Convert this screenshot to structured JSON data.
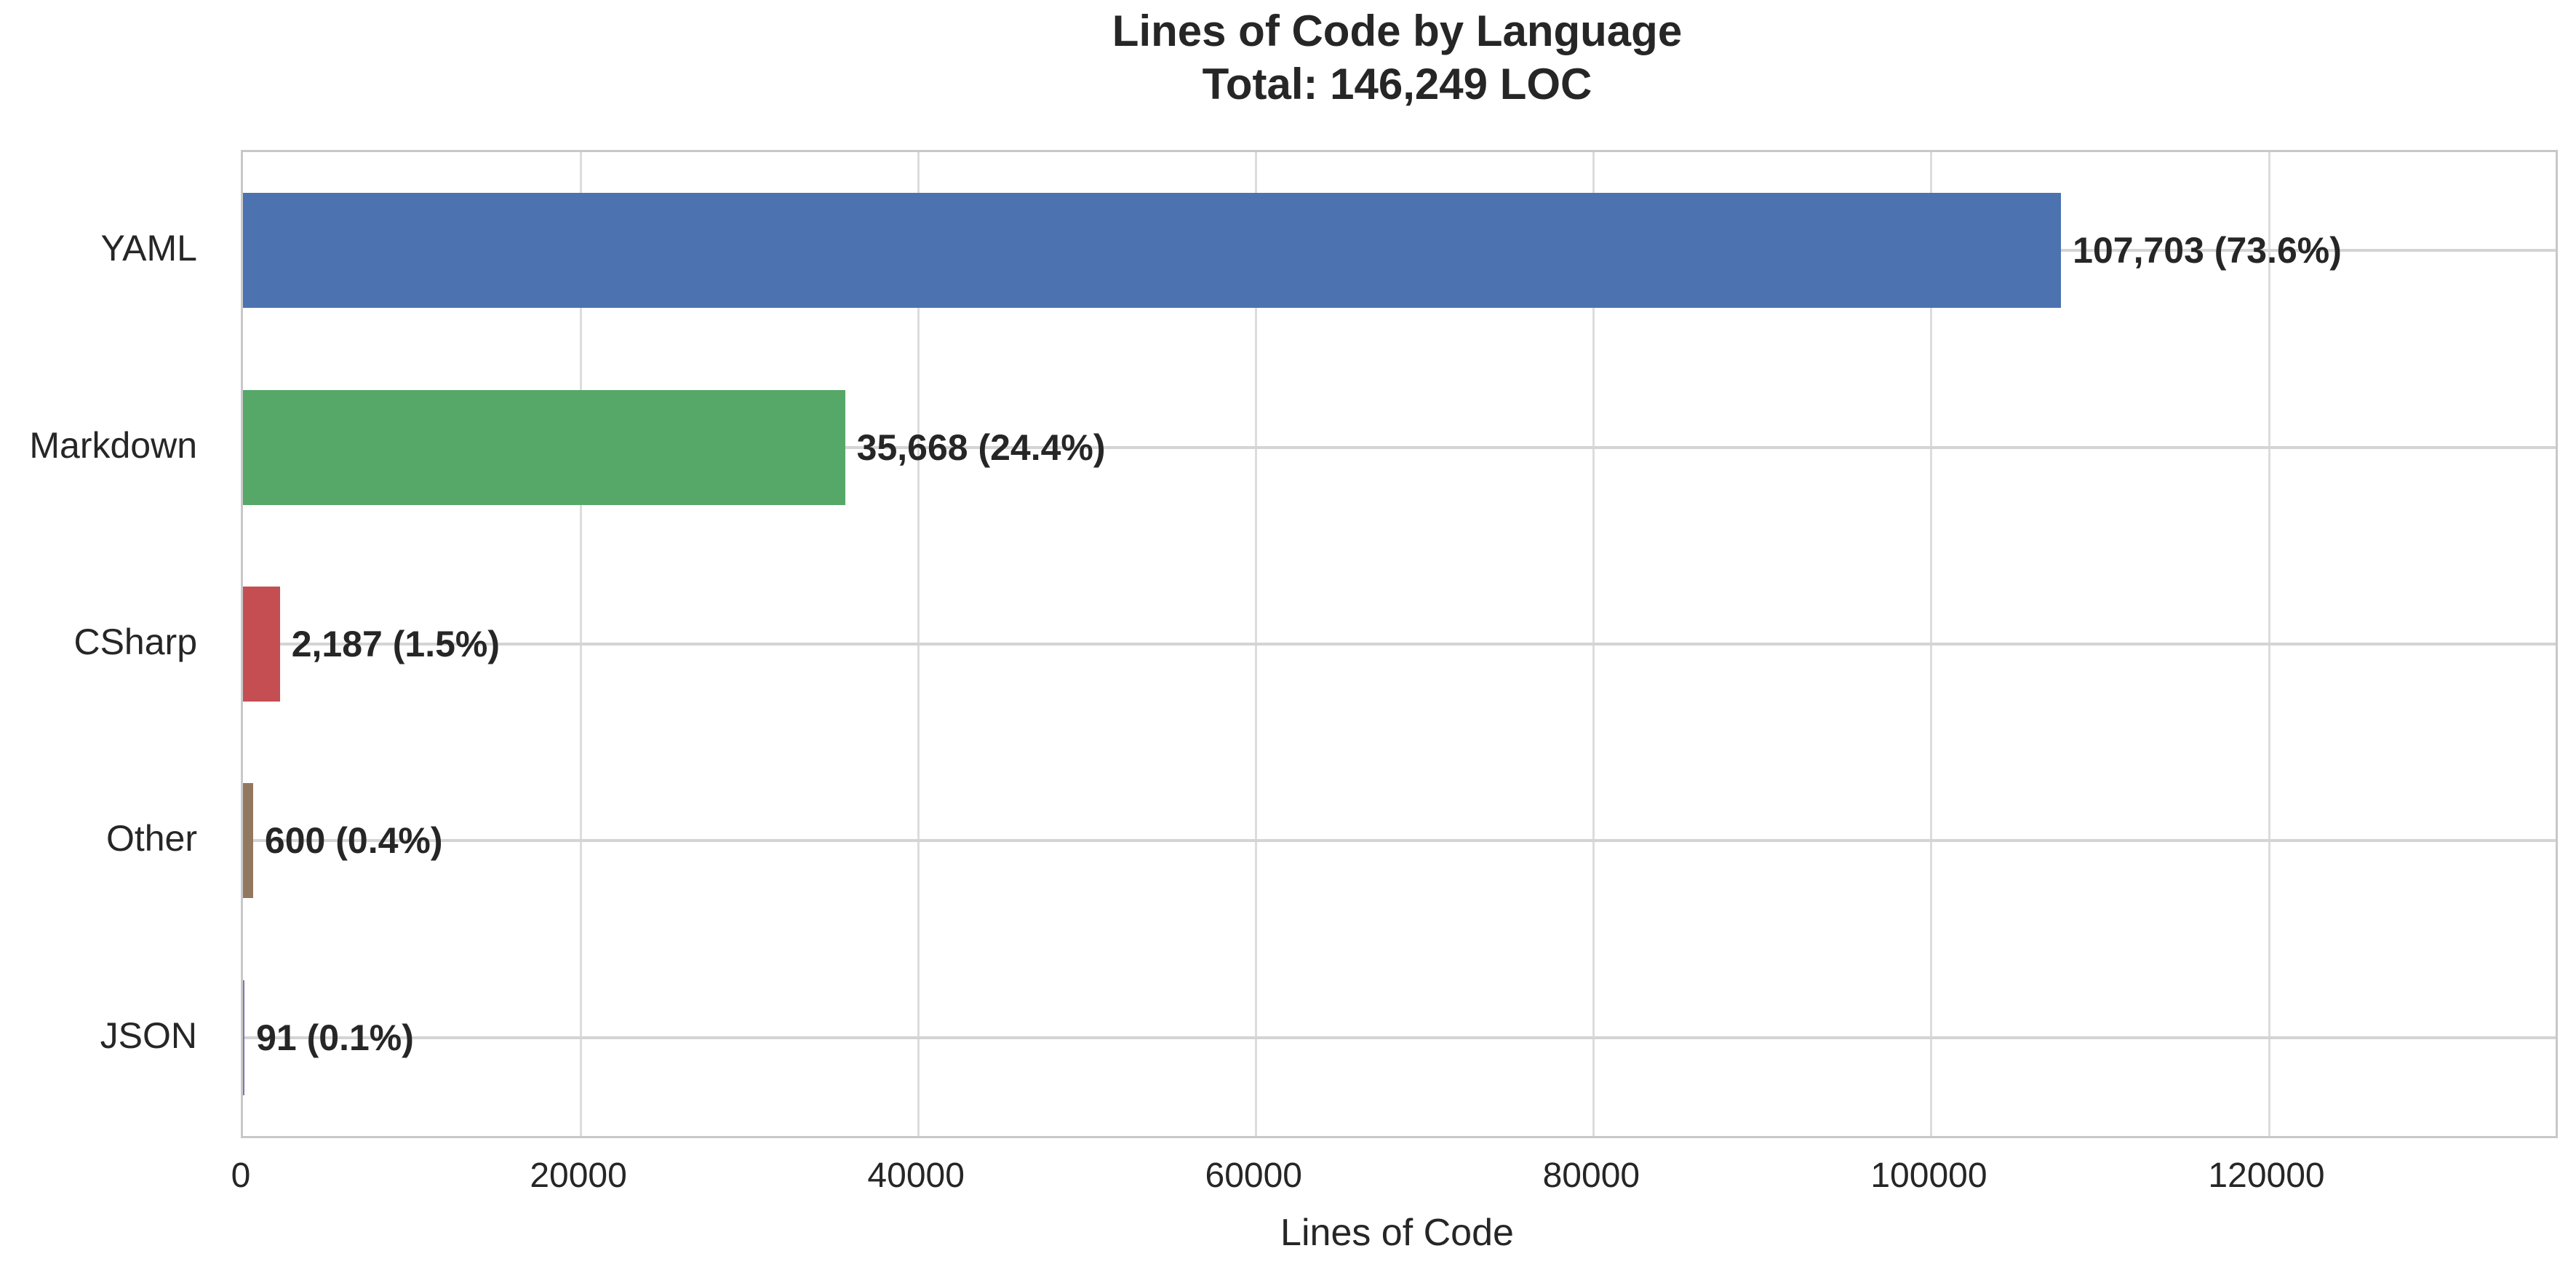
{
  "chart_data": {
    "type": "bar",
    "orientation": "horizontal",
    "title": "Lines of Code by Language",
    "subtitle": "Total: 146,249 LOC",
    "total_loc": "146,249",
    "categories": [
      "YAML",
      "Markdown",
      "CSharp",
      "Other",
      "JSON"
    ],
    "values": [
      107703,
      35668,
      2187,
      600,
      91
    ],
    "percentages": [
      73.6,
      24.4,
      1.5,
      0.4,
      0.1
    ],
    "value_labels": [
      "107,703 (73.6%)",
      "35,668 (24.4%)",
      "2,187 (1.5%)",
      "600 (0.4%)",
      "91 (0.1%)"
    ],
    "bar_colors": [
      "#4C72B0",
      "#55A868",
      "#C44E52",
      "#937860",
      "#8172B3"
    ],
    "xlabel": "Lines of Code",
    "xlim": [
      0,
      137000
    ],
    "xticks": [
      0,
      20000,
      40000,
      60000,
      80000,
      100000,
      120000
    ],
    "xtick_labels": [
      "0",
      "20000",
      "40000",
      "60000",
      "80000",
      "100000",
      "120000"
    ],
    "grid": true,
    "legend": false
  },
  "colors": {
    "background": "#ffffff",
    "text": "#262626",
    "grid_vertical": "#dcdcdc",
    "grid_horizontal": "#d4d4d4",
    "frame_border": "#c8c8c8"
  }
}
